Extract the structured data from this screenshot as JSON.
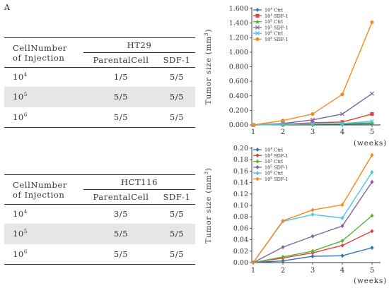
{
  "panel_label": "A",
  "tables": [
    {
      "header_left": [
        "CellNumber",
        "of Injection"
      ],
      "group_label": "HT29",
      "col_labels": [
        "ParentalCell",
        "SDF-1"
      ],
      "rows": [
        {
          "exp": "4",
          "parental": "1/5",
          "sdf": "5/5"
        },
        {
          "exp": "5",
          "parental": "5/5",
          "sdf": "5/5"
        },
        {
          "exp": "6",
          "parental": "5/5",
          "sdf": "5/5"
        }
      ]
    },
    {
      "header_left": [
        "CellNumber",
        "of Injection"
      ],
      "group_label": "HCT116",
      "col_labels": [
        "ParentalCell",
        "SDF-1"
      ],
      "rows": [
        {
          "exp": "4",
          "parental": "3/5",
          "sdf": "5/5"
        },
        {
          "exp": "5",
          "parental": "5/5",
          "sdf": "5/5"
        },
        {
          "exp": "6",
          "parental": "5/5",
          "sdf": "5/5"
        }
      ]
    }
  ],
  "chart_data": [
    {
      "type": "line",
      "ylabel_pre": "Tumor size (mm",
      "ylabel_sup": "3",
      "ylabel_post": ")",
      "xlabel": "(weeks)",
      "x": [
        1,
        2,
        3,
        4,
        5
      ],
      "ylim": [
        0,
        1.6
      ],
      "yticks": [
        "0.000",
        "0.200",
        "0.400",
        "0.600",
        "0.800",
        "1.000",
        "1.200",
        "1.400",
        "1.600"
      ],
      "legend_position": "top-left",
      "series": [
        {
          "exp": "4",
          "label": " Ctrl",
          "color": "#2e75b6",
          "marker": "diamond",
          "values": [
            0,
            0.005,
            0.01,
            0.012,
            0.015
          ]
        },
        {
          "exp": "4",
          "label": " SDF-1",
          "color": "#e0413a",
          "marker": "square",
          "values": [
            0,
            0.012,
            0.03,
            0.04,
            0.15
          ]
        },
        {
          "exp": "5",
          "label": " Ctrl",
          "color": "#5cb335",
          "marker": "triangle",
          "values": [
            0,
            0.005,
            0.01,
            0.015,
            0.03
          ]
        },
        {
          "exp": "5",
          "label": " SDF-1",
          "color": "#8064a2",
          "marker": "x",
          "values": [
            0,
            0.02,
            0.07,
            0.15,
            0.43
          ]
        },
        {
          "exp": "6",
          "label": " Ctrl",
          "color": "#4bc4e8",
          "marker": "x",
          "values": [
            0,
            0.01,
            0.015,
            0.02,
            0.05
          ]
        },
        {
          "exp": "6",
          "label": " SDF-1",
          "color": "#f28a1c",
          "marker": "circle",
          "values": [
            0,
            0.06,
            0.15,
            0.42,
            1.41
          ]
        }
      ]
    },
    {
      "type": "line",
      "ylabel_pre": "Tumor size (mm",
      "ylabel_sup": "3",
      "ylabel_post": ")",
      "xlabel": "(weeks)",
      "x": [
        1,
        2,
        3,
        4,
        5
      ],
      "ylim": [
        0,
        0.2
      ],
      "yticks": [
        "0.00",
        "0.02",
        "0.04",
        "0.06",
        "0.08",
        "0.10",
        "0.12",
        "0.14",
        "0.16",
        "0.18",
        "0.20"
      ],
      "legend_position": "top-left",
      "series": [
        {
          "exp": "4",
          "label": " Ctrl",
          "color": "#2e75b6",
          "marker": "diamond",
          "values": [
            0,
            0.003,
            0.011,
            0.012,
            0.026
          ]
        },
        {
          "exp": "4",
          "label": " SDF-1",
          "color": "#e0413a",
          "marker": "diamond",
          "values": [
            0,
            0.008,
            0.017,
            0.03,
            0.055
          ]
        },
        {
          "exp": "5",
          "label": " Ctrl",
          "color": "#5cb335",
          "marker": "diamond",
          "values": [
            0,
            0.01,
            0.02,
            0.038,
            0.082
          ]
        },
        {
          "exp": "5",
          "label": " SDF-1",
          "color": "#8064a2",
          "marker": "diamond",
          "values": [
            0,
            0.027,
            0.046,
            0.064,
            0.141
          ]
        },
        {
          "exp": "6",
          "label": " Ctrl",
          "color": "#4bc4e8",
          "marker": "diamond",
          "values": [
            0,
            0.072,
            0.084,
            0.078,
            0.158
          ]
        },
        {
          "exp": "6",
          "label": " SDF-1",
          "color": "#f28a1c",
          "marker": "diamond",
          "values": [
            0,
            0.073,
            0.092,
            0.101,
            0.188
          ]
        }
      ]
    }
  ]
}
